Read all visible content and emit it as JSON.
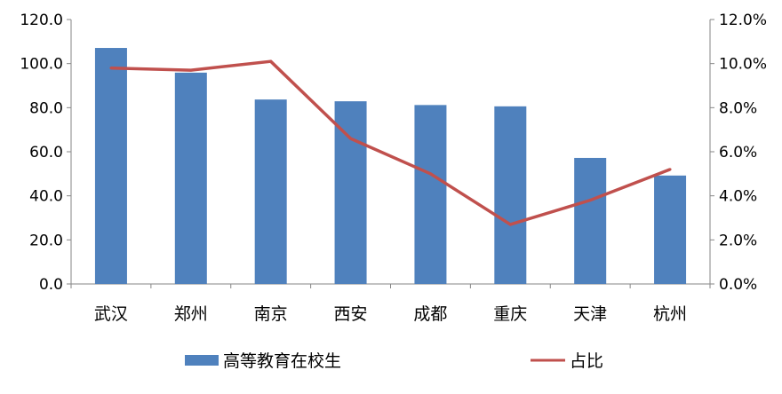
{
  "chart_data": {
    "type": "bar",
    "categories": [
      "武汉",
      "郑州",
      "南京",
      "西安",
      "成都",
      "重庆",
      "天津",
      "杭州"
    ],
    "series": [
      {
        "name": "高等教育在校生",
        "type": "bar",
        "axis": "left",
        "color": "#4f81bd",
        "values": [
          107.1,
          95.9,
          83.7,
          82.9,
          81.2,
          80.6,
          57.2,
          49.2
        ]
      },
      {
        "name": "占比",
        "type": "line",
        "axis": "right",
        "color": "#c0504d",
        "values": [
          9.8,
          9.7,
          10.1,
          6.6,
          5.0,
          2.7,
          3.8,
          5.2
        ]
      }
    ],
    "y_left": {
      "ylim": [
        0,
        120
      ],
      "ticks": [
        "0.0",
        "20.0",
        "40.0",
        "60.0",
        "80.0",
        "100.0",
        "120.0"
      ]
    },
    "y_right": {
      "ylim": [
        0,
        12
      ],
      "unit": "%",
      "ticks": [
        "0.0%",
        "2.0%",
        "4.0%",
        "6.0%",
        "8.0%",
        "10.0%",
        "12.0%"
      ]
    },
    "grid": false,
    "legend_position": "bottom"
  }
}
